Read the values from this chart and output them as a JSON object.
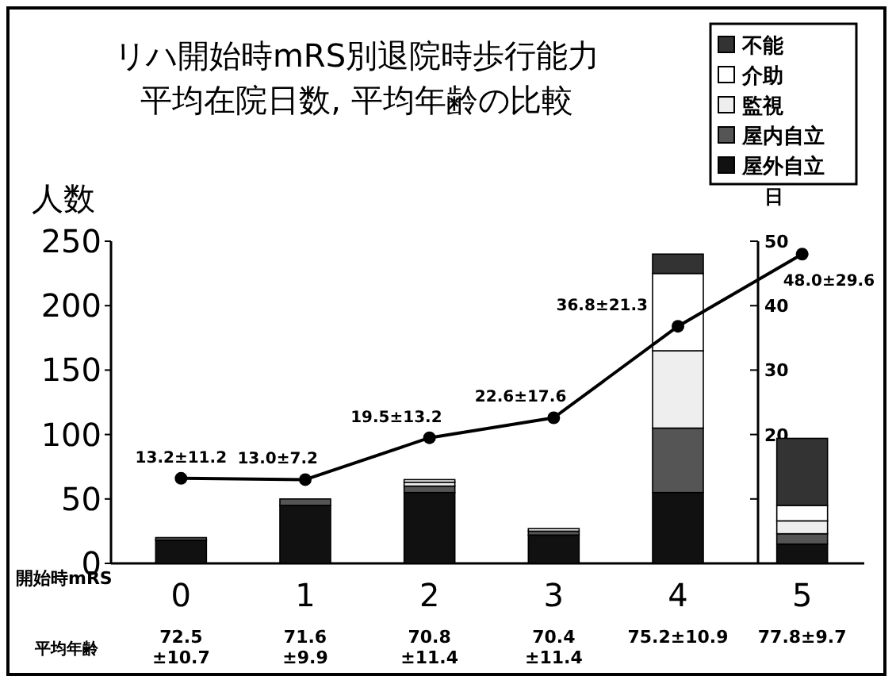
{
  "chart_data": {
    "type": "bar",
    "title": "リハ開始時mRS別退院時歩行能力",
    "subtitle": "平均在院日数, 平均年齢の比較",
    "xlabel": "開始時mRS",
    "ylabel": "人数",
    "y2label": "日",
    "categories": [
      "0",
      "1",
      "2",
      "3",
      "4",
      "5"
    ],
    "stacked": true,
    "legend": "top right",
    "marker": "circle",
    "ylim": [
      0,
      250
    ],
    "yticks": [
      0,
      50,
      100,
      150,
      200,
      250
    ],
    "y2lim": [
      0,
      50
    ],
    "y2ticks": [
      {
        "value": 10,
        "label": null
      },
      20,
      30,
      40,
      50
    ],
    "series": [
      {
        "name": "屋外自立",
        "color": "#111111",
        "values": [
          18,
          45,
          55,
          22,
          55,
          15
        ]
      },
      {
        "name": "屋内自立",
        "color": "#555555",
        "values": [
          2,
          5,
          5,
          3,
          50,
          8
        ]
      },
      {
        "name": "監視",
        "color": "#eeeeee",
        "values": [
          0,
          0,
          3,
          2,
          60,
          10
        ]
      },
      {
        "name": "介助",
        "color": "#ffffff",
        "values": [
          0,
          0,
          2,
          0,
          60,
          12
        ]
      },
      {
        "name": "不能",
        "color": "#333333",
        "values": [
          0,
          0,
          0,
          0,
          15,
          52
        ]
      },
      {
        "type": "line",
        "axis": "y2",
        "color": "#000000",
        "values": [
          13.2,
          13.0,
          19.5,
          22.6,
          36.8,
          48.0
        ],
        "value_labels": [
          "13.2±11.2",
          "13.0±7.2",
          "19.5±13.2",
          "22.6±17.6",
          "36.8±21.3",
          "48.0±29.6"
        ]
      }
    ],
    "annotations": [
      "平均年齢",
      "72.5\n±10.7",
      "71.6\n±9.9",
      "70.8\n±11.4",
      "70.4\n±11.4",
      "75.2±10.9",
      "77.8±9.7"
    ]
  }
}
